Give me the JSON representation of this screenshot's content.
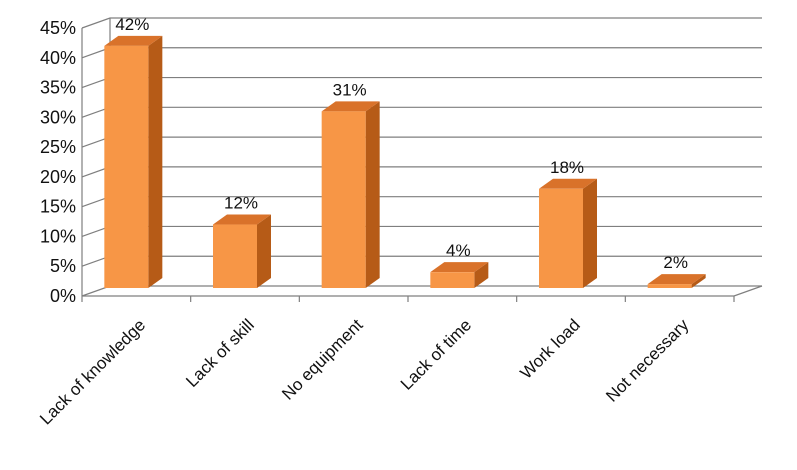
{
  "chart_data": {
    "type": "bar",
    "style": "3d-column",
    "categories": [
      "Lack of knowledge",
      "Lack of skill",
      "No equipment",
      "Lack of time",
      "Work load",
      "Not necessary"
    ],
    "values": [
      42,
      12,
      31,
      4,
      18,
      2
    ],
    "data_labels": [
      "42%",
      "12%",
      "31%",
      "4%",
      "18%",
      "2%"
    ],
    "ylim": [
      0,
      45
    ],
    "yticks": [
      "0%",
      "5%",
      "10%",
      "15%",
      "20%",
      "25%",
      "30%",
      "35%",
      "40%",
      "45%"
    ],
    "title": "",
    "xlabel": "",
    "ylabel": "",
    "legend": false,
    "colors": {
      "bar_front": "#F79646",
      "bar_side": "#B65B17",
      "bar_top": "#D9722A",
      "gridline": "#7F7F7F"
    }
  }
}
